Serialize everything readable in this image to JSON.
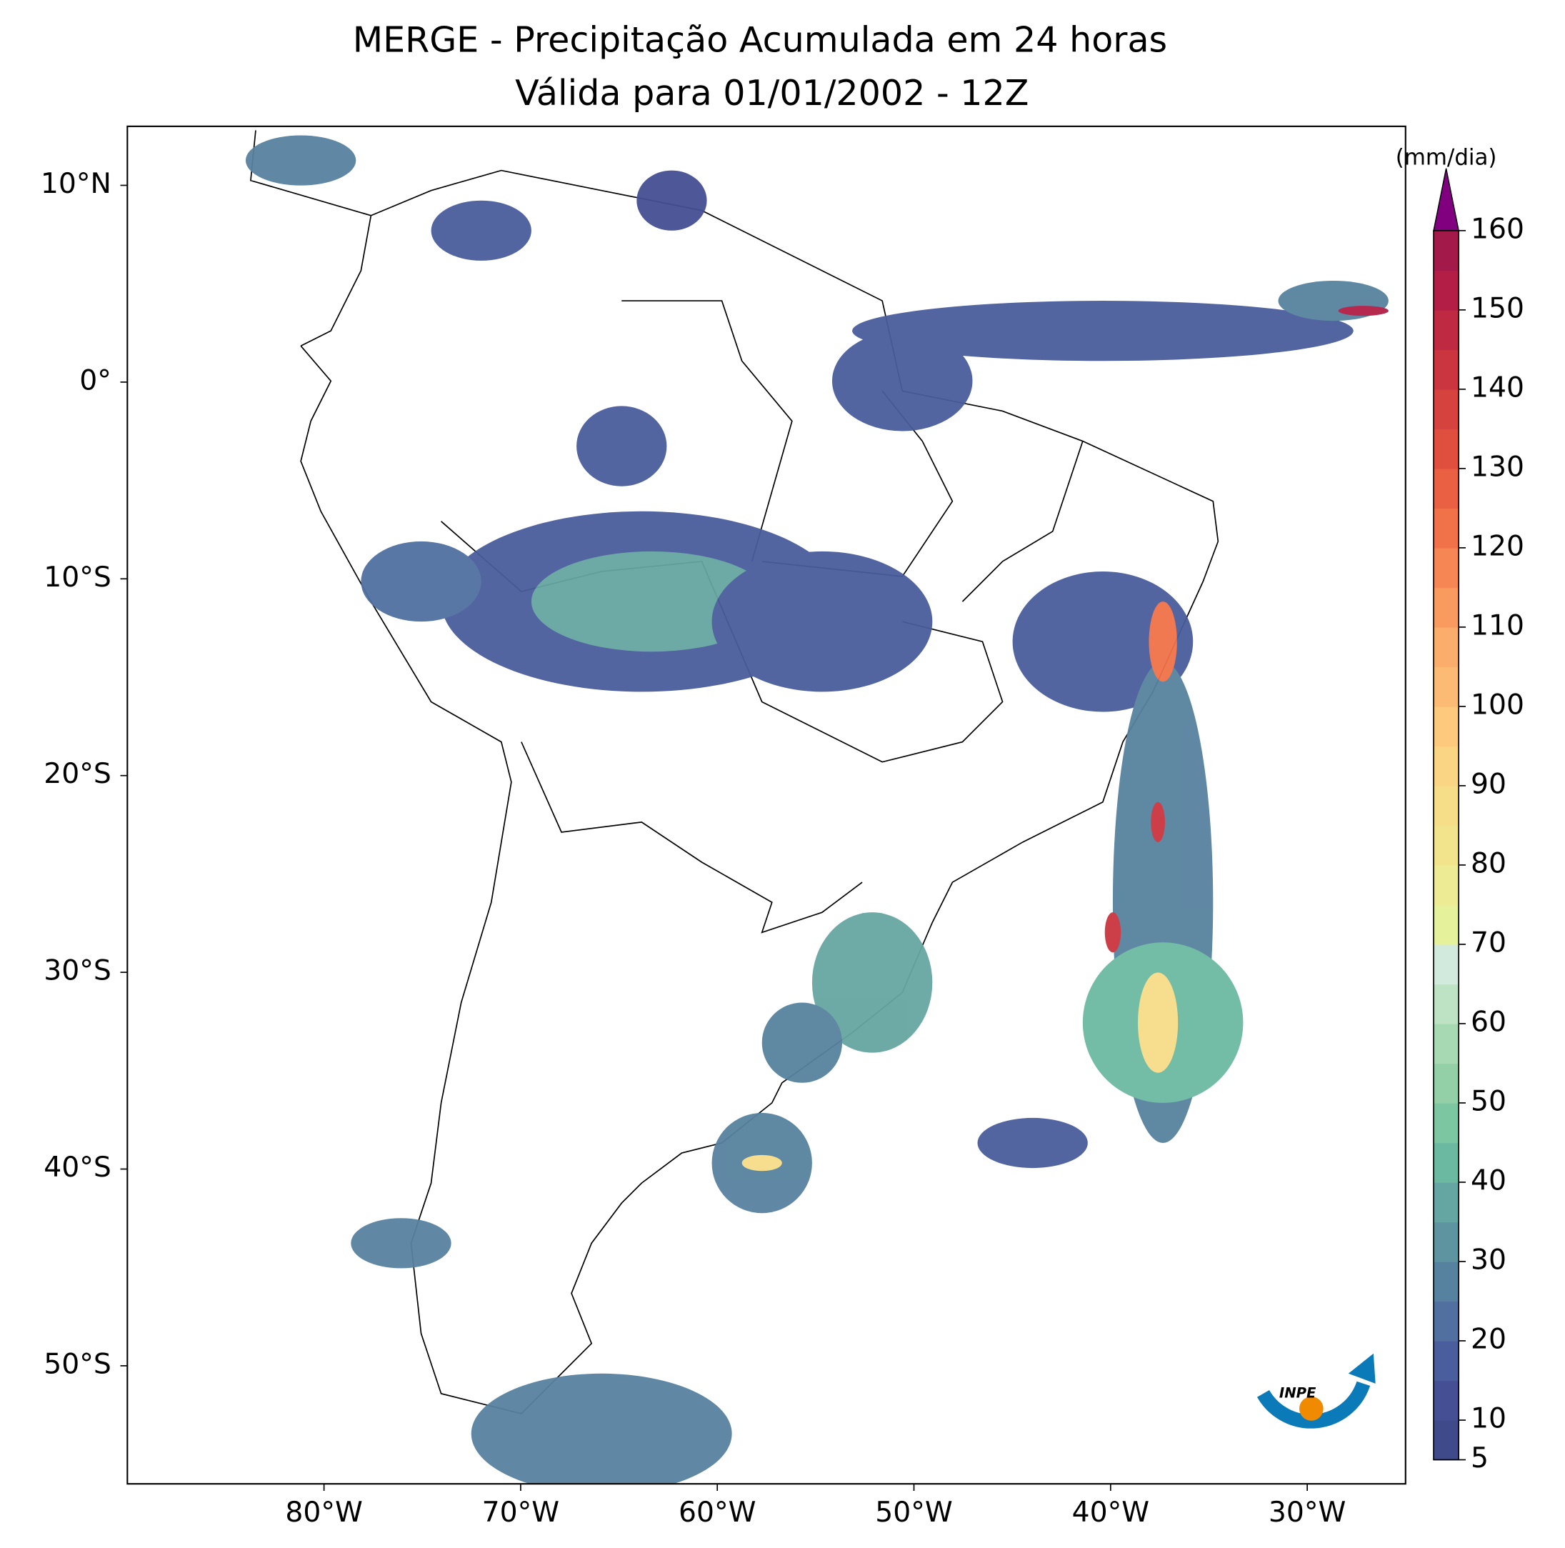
{
  "map_data": {
    "title": [
      "MERGE - Precipitação Acumulada em 24 horas",
      "Válida para 01/01/2002 - 12Z"
    ],
    "xlim": [
      -90,
      -25
    ],
    "ylim": [
      -56,
      13
    ],
    "xticks": [
      {
        "value": -80,
        "label": "80°W"
      },
      {
        "value": -70,
        "label": "70°W"
      },
      {
        "value": -60,
        "label": "60°W"
      },
      {
        "value": -50,
        "label": "50°W"
      },
      {
        "value": -40,
        "label": "40°W"
      },
      {
        "value": -30,
        "label": "30°W"
      }
    ],
    "yticks": [
      {
        "value": 10,
        "label": "10°N"
      },
      {
        "value": 0,
        "label": "0°"
      },
      {
        "value": -10,
        "label": "10°S"
      },
      {
        "value": -20,
        "label": "20°S"
      },
      {
        "value": -30,
        "label": "30°S"
      },
      {
        "value": -40,
        "label": "40°S"
      },
      {
        "value": -50,
        "label": "50°S"
      }
    ],
    "colorbar": {
      "unit": "(mm/dia)",
      "levels": [
        5,
        10,
        15,
        20,
        25,
        30,
        35,
        40,
        45,
        50,
        55,
        60,
        65,
        70,
        75,
        80,
        85,
        90,
        95,
        100,
        105,
        110,
        115,
        120,
        125,
        130,
        135,
        140,
        145,
        150,
        155,
        160
      ],
      "colors": [
        "#3f4a8a",
        "#444f94",
        "#4a5d9c",
        "#5170a0",
        "#57829f",
        "#5e93a0",
        "#66a6a2",
        "#6cb9a2",
        "#7cc6a2",
        "#93d0a7",
        "#a7d9b2",
        "#bde2c4",
        "#d2eadd",
        "#e6f19c",
        "#edec94",
        "#f1e48d",
        "#f6dd88",
        "#fad584",
        "#fcc97d",
        "#fcbb74",
        "#fbad6b",
        "#f99a5f",
        "#f68653",
        "#f17249",
        "#ea6042",
        "#e04f3e",
        "#d6423d",
        "#cb353f",
        "#bf2942",
        "#b21e46",
        "#a31a4a"
      ],
      "over_color": "#800080",
      "ticks": [
        5,
        10,
        20,
        30,
        40,
        50,
        60,
        70,
        80,
        90,
        100,
        110,
        120,
        130,
        140,
        150,
        160
      ]
    },
    "logo": "INPE"
  }
}
